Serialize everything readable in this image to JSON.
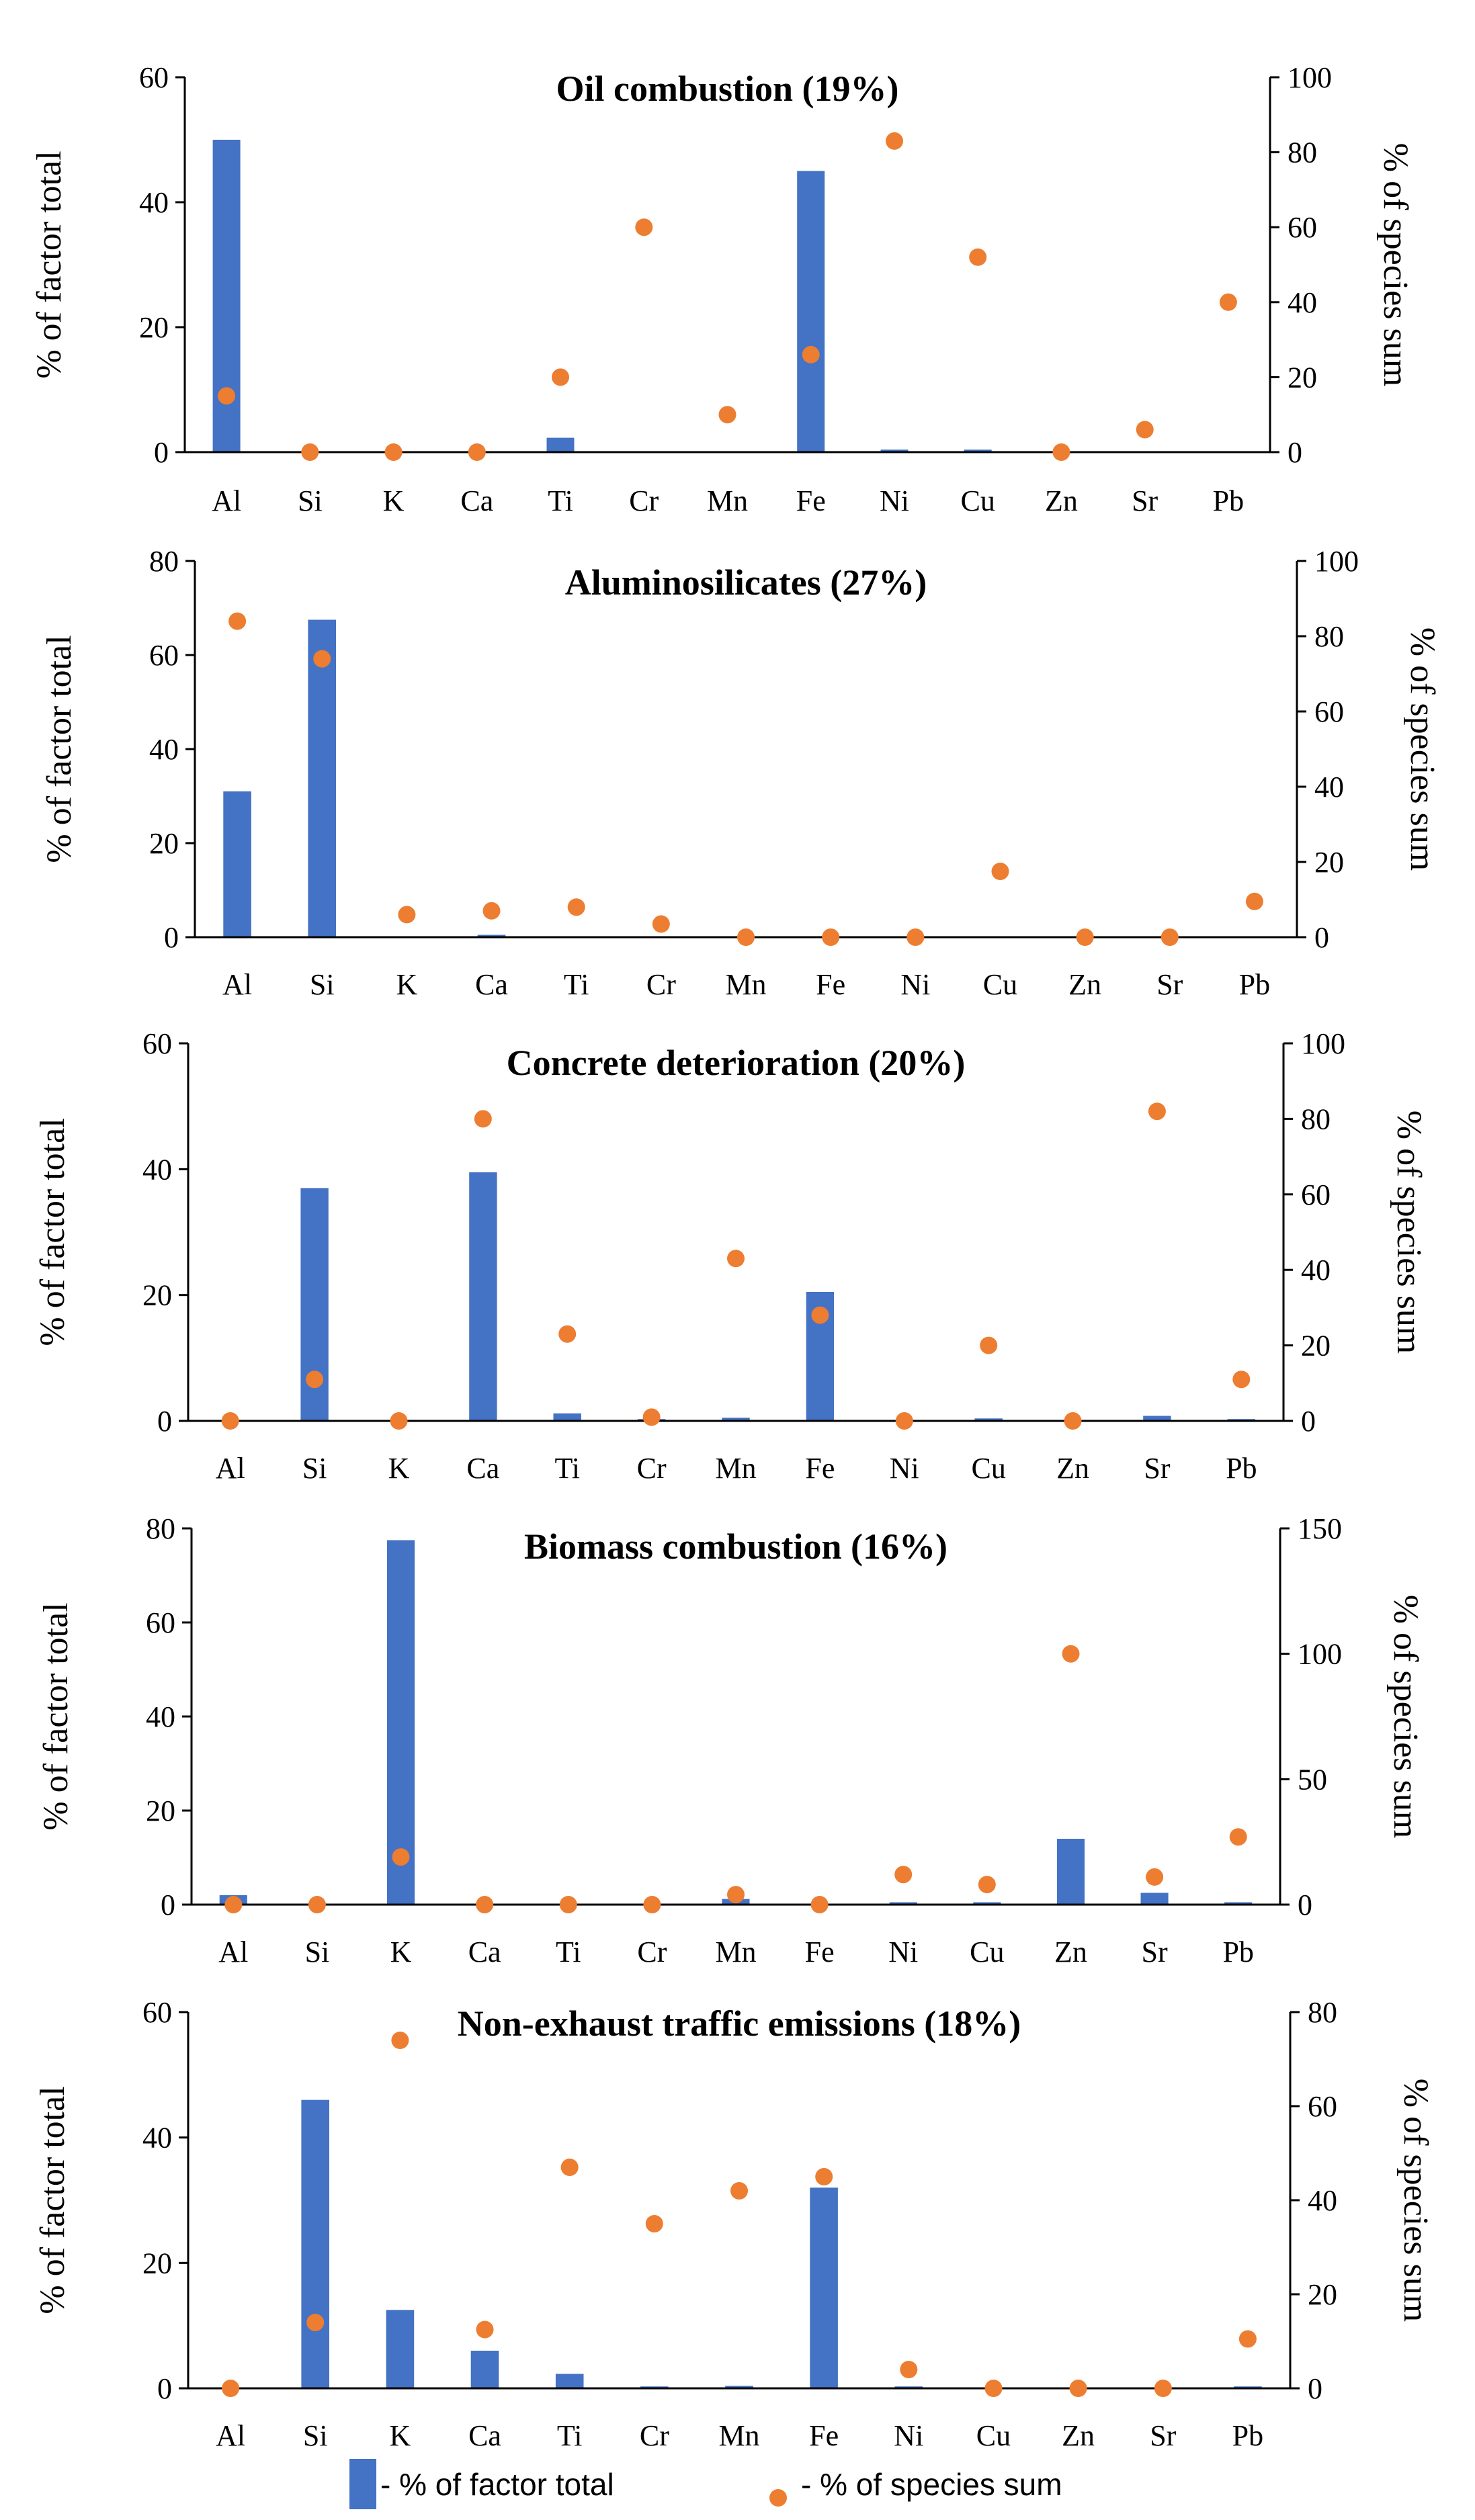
{
  "colors": {
    "bar": "#4472C4",
    "dot": "#ED7D31",
    "axis": "#000000"
  },
  "legend": {
    "bar_label": "- % of factor total",
    "dot_label": "- % of species sum"
  },
  "chart_data": [
    {
      "type": "bar",
      "title": "Oil combustion (19%)",
      "categories": [
        "Al",
        "Si",
        "K",
        "Ca",
        "Ti",
        "Cr",
        "Mn",
        "Fe",
        "Ni",
        "Cu",
        "Zn",
        "Sr",
        "Pb"
      ],
      "ylabel": "% of factor total",
      "y2label": "% of species sum",
      "ylim": [
        0,
        60
      ],
      "yticks": [
        0,
        20,
        40,
        60
      ],
      "y2lim": [
        0,
        100
      ],
      "y2ticks": [
        0,
        20,
        40,
        60,
        80,
        100
      ],
      "series": [
        {
          "name": "% of factor total",
          "type": "bar",
          "axis": "left",
          "values": [
            50,
            0,
            0,
            0,
            2.3,
            0,
            0,
            45,
            0.4,
            0.4,
            0,
            0,
            0
          ]
        },
        {
          "name": "% of species sum",
          "type": "scatter",
          "axis": "right",
          "values": [
            15,
            0,
            0,
            0,
            20,
            60,
            10,
            26,
            83,
            52,
            0,
            6,
            40
          ]
        }
      ]
    },
    {
      "type": "bar",
      "title": "Aluminosilicates (27%)",
      "categories": [
        "Al",
        "Si",
        "K",
        "Ca",
        "Ti",
        "Cr",
        "Mn",
        "Fe",
        "Ni",
        "Cu",
        "Zn",
        "Sr",
        "Pb"
      ],
      "ylabel": "% of factor total",
      "y2label": "% of species sum",
      "ylim": [
        0,
        80
      ],
      "yticks": [
        0,
        20,
        40,
        60,
        80
      ],
      "y2lim": [
        0,
        100
      ],
      "y2ticks": [
        0,
        20,
        40,
        60,
        80,
        100
      ],
      "series": [
        {
          "name": "% of factor total",
          "type": "bar",
          "axis": "left",
          "values": [
            31,
            67.5,
            0,
            0.5,
            0,
            0,
            0,
            0,
            0,
            0,
            0,
            0,
            0
          ]
        },
        {
          "name": "% of species sum",
          "type": "scatter",
          "axis": "right",
          "values": [
            84,
            74,
            6,
            7,
            8,
            3.5,
            0,
            0,
            0,
            17.5,
            0,
            0,
            9.5
          ]
        }
      ]
    },
    {
      "type": "bar",
      "title": "Concrete deterioration (20%)",
      "categories": [
        "Al",
        "Si",
        "K",
        "Ca",
        "Ti",
        "Cr",
        "Mn",
        "Fe",
        "Ni",
        "Cu",
        "Zn",
        "Sr",
        "Pb"
      ],
      "ylabel": "% of factor total",
      "y2label": "% of species sum",
      "ylim": [
        0,
        60
      ],
      "yticks": [
        0,
        20,
        40,
        60
      ],
      "y2lim": [
        0,
        100
      ],
      "y2ticks": [
        0,
        20,
        40,
        60,
        80,
        100
      ],
      "series": [
        {
          "name": "% of factor total",
          "type": "bar",
          "axis": "left",
          "values": [
            0,
            37,
            0,
            39.5,
            1.2,
            0.3,
            0.5,
            20.5,
            0,
            0.4,
            0,
            0.8,
            0.3
          ]
        },
        {
          "name": "% of species sum",
          "type": "scatter",
          "axis": "right",
          "values": [
            0,
            11,
            0,
            80,
            23,
            1,
            43,
            28,
            0,
            20,
            0,
            82,
            11
          ]
        }
      ]
    },
    {
      "type": "bar",
      "title": "Biomass combustion (16%)",
      "categories": [
        "Al",
        "Si",
        "K",
        "Ca",
        "Ti",
        "Cr",
        "Mn",
        "Fe",
        "Ni",
        "Cu",
        "Zn",
        "Sr",
        "Pb"
      ],
      "ylabel": "% of factor total",
      "y2label": "% of species sum",
      "ylim": [
        0,
        80
      ],
      "yticks": [
        0,
        20,
        40,
        60,
        80
      ],
      "y2lim": [
        0,
        150
      ],
      "y2ticks": [
        0,
        50,
        100,
        150
      ],
      "series": [
        {
          "name": "% of factor total",
          "type": "bar",
          "axis": "left",
          "values": [
            2,
            0,
            77.5,
            0,
            0,
            0,
            1.2,
            0,
            0.5,
            0.5,
            14,
            2.5,
            0.5
          ]
        },
        {
          "name": "% of species sum",
          "type": "scatter",
          "axis": "right",
          "values": [
            0,
            0,
            19,
            0,
            0,
            0,
            4,
            0,
            12,
            8,
            100,
            11,
            27
          ]
        }
      ]
    },
    {
      "type": "bar",
      "title": "Non-exhaust traffic emissions (18%)",
      "categories": [
        "Al",
        "Si",
        "K",
        "Ca",
        "Ti",
        "Cr",
        "Mn",
        "Fe",
        "Ni",
        "Cu",
        "Zn",
        "Sr",
        "Pb"
      ],
      "ylabel": "% of factor total",
      "y2label": "% of species sum",
      "ylim": [
        0,
        60
      ],
      "yticks": [
        0,
        20,
        40,
        60
      ],
      "y2lim": [
        0,
        80
      ],
      "y2ticks": [
        0,
        20,
        40,
        60,
        80
      ],
      "series": [
        {
          "name": "% of factor total",
          "type": "bar",
          "axis": "left",
          "values": [
            0,
            46,
            12.5,
            6,
            2.3,
            0.3,
            0.4,
            32,
            0.3,
            0,
            0,
            0,
            0.3
          ]
        },
        {
          "name": "% of species sum",
          "type": "scatter",
          "axis": "right",
          "values": [
            0,
            14,
            74,
            12.5,
            47,
            35,
            42,
            45,
            4,
            0,
            0,
            0,
            10.5
          ]
        }
      ]
    }
  ]
}
